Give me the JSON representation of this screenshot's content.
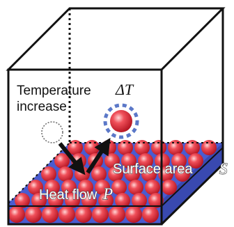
{
  "labels": {
    "temperature_line1": "Temperature",
    "temperature_line2": "increase",
    "delta_t": "ΔT",
    "surface_area": "Surface area",
    "surface_symbol": "S",
    "heat_flow": "Heat flow",
    "heat_symbol": "P"
  }
}
